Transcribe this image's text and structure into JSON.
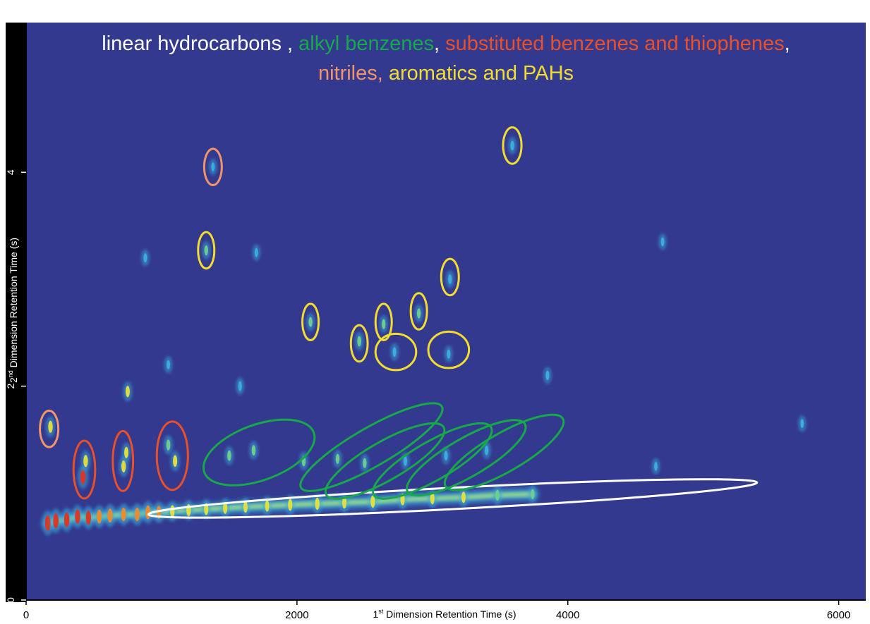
{
  "colors": {
    "background": "#33398f",
    "linear": "#ffffff",
    "alkyl": "#17a84a",
    "substituted": "#e8502a",
    "nitriles": "#f0956a",
    "aromatics": "#f2dc2f",
    "axis": "#000000"
  },
  "title": {
    "line1": [
      {
        "text": "linear hydrocarbons , ",
        "group": "linear"
      },
      {
        "text": "alkyl benzenes",
        "group": "alkyl"
      },
      {
        "text": ", ",
        "group": "linear"
      },
      {
        "text": "substituted benzenes and thiophenes",
        "group": "substituted"
      },
      {
        "text": ",",
        "group": "linear"
      }
    ],
    "line2": [
      {
        "text": "nitriles, ",
        "group": "nitriles"
      },
      {
        "text": "aromatics and PAHs",
        "group": "aromatics"
      }
    ]
  },
  "chart_data": {
    "type": "heatmap",
    "xlabel": "1st Dimension Retention Time (s)",
    "xlabel_parts": {
      "prefix": "1",
      "sup": "st",
      "rest": " Dimension Retention Time (s)"
    },
    "ylabel": "2nd Dimension Retention Time (s)",
    "ylabel_parts": {
      "prefix": "2",
      "sup": "nd",
      "rest": " Dimension Retention Time (s)"
    },
    "xlim": [
      0,
      6200
    ],
    "ylim": [
      0,
      5.4
    ],
    "xticks": [
      "0",
      "2000",
      "4000",
      "6000"
    ],
    "xtick_values": [
      0,
      2000,
      4000,
      6000
    ],
    "yticks": [
      "0",
      "2",
      "4"
    ],
    "ytick_values": [
      0,
      2,
      4
    ],
    "compound_groups": [
      {
        "group": "linear",
        "regions": [
          {
            "x": 3150,
            "y": 0.95,
            "rx": 2250,
            "ry": 0.1,
            "angle": -3
          }
        ]
      },
      {
        "group": "alkyl",
        "regions": [
          {
            "x": 1720,
            "y": 1.38,
            "rx": 430,
            "ry": 0.26,
            "angle": -20
          },
          {
            "x": 2550,
            "y": 1.43,
            "rx": 600,
            "ry": 0.18,
            "angle": -30
          },
          {
            "x": 2650,
            "y": 1.3,
            "rx": 500,
            "ry": 0.18,
            "angle": -30
          },
          {
            "x": 3000,
            "y": 1.3,
            "rx": 500,
            "ry": 0.18,
            "angle": -30
          },
          {
            "x": 3250,
            "y": 1.33,
            "rx": 500,
            "ry": 0.18,
            "angle": -30
          },
          {
            "x": 3530,
            "y": 1.38,
            "rx": 500,
            "ry": 0.18,
            "angle": -30
          }
        ]
      },
      {
        "group": "substituted",
        "regions": [
          {
            "x": 430,
            "y": 1.22,
            "rx": 80,
            "ry": 0.27,
            "angle": 0
          },
          {
            "x": 715,
            "y": 1.3,
            "rx": 75,
            "ry": 0.28,
            "angle": 0
          },
          {
            "x": 1080,
            "y": 1.35,
            "rx": 115,
            "ry": 0.32,
            "angle": 0
          }
        ]
      },
      {
        "group": "nitriles",
        "regions": [
          {
            "x": 170,
            "y": 1.6,
            "rx": 68,
            "ry": 0.17,
            "angle": 0
          },
          {
            "x": 1380,
            "y": 4.05,
            "rx": 65,
            "ry": 0.17,
            "angle": 0
          }
        ]
      },
      {
        "group": "aromatics",
        "regions": [
          {
            "x": 1330,
            "y": 3.27,
            "rx": 60,
            "ry": 0.17,
            "angle": 0
          },
          {
            "x": 2100,
            "y": 2.6,
            "rx": 60,
            "ry": 0.17,
            "angle": 0
          },
          {
            "x": 2460,
            "y": 2.4,
            "rx": 62,
            "ry": 0.17,
            "angle": 0
          },
          {
            "x": 2640,
            "y": 2.6,
            "rx": 60,
            "ry": 0.17,
            "angle": 0
          },
          {
            "x": 2730,
            "y": 2.32,
            "rx": 150,
            "ry": 0.17,
            "angle": 0
          },
          {
            "x": 2900,
            "y": 2.7,
            "rx": 60,
            "ry": 0.17,
            "angle": 0
          },
          {
            "x": 3120,
            "y": 2.34,
            "rx": 150,
            "ry": 0.17,
            "angle": 0
          },
          {
            "x": 3130,
            "y": 3.02,
            "rx": 65,
            "ry": 0.17,
            "angle": 0
          },
          {
            "x": 3590,
            "y": 4.25,
            "rx": 68,
            "ry": 0.17,
            "angle": 0
          }
        ]
      }
    ],
    "peaks": [
      {
        "x": 160,
        "y": 0.72,
        "i": 1.0
      },
      {
        "x": 220,
        "y": 0.74,
        "i": 0.95
      },
      {
        "x": 300,
        "y": 0.75,
        "i": 0.9
      },
      {
        "x": 380,
        "y": 0.78,
        "i": 0.85
      },
      {
        "x": 460,
        "y": 0.77,
        "i": 0.85
      },
      {
        "x": 540,
        "y": 0.78,
        "i": 0.8
      },
      {
        "x": 620,
        "y": 0.79,
        "i": 0.8
      },
      {
        "x": 720,
        "y": 0.8,
        "i": 0.75
      },
      {
        "x": 820,
        "y": 0.8,
        "i": 0.75
      },
      {
        "x": 900,
        "y": 0.82,
        "i": 0.8
      },
      {
        "x": 980,
        "y": 0.82,
        "i": 0.7
      },
      {
        "x": 1080,
        "y": 0.83,
        "i": 0.6
      },
      {
        "x": 1200,
        "y": 0.84,
        "i": 0.6
      },
      {
        "x": 1330,
        "y": 0.85,
        "i": 0.55
      },
      {
        "x": 1470,
        "y": 0.86,
        "i": 0.55
      },
      {
        "x": 1620,
        "y": 0.87,
        "i": 0.5
      },
      {
        "x": 1780,
        "y": 0.88,
        "i": 0.5
      },
      {
        "x": 1950,
        "y": 0.89,
        "i": 0.55
      },
      {
        "x": 2150,
        "y": 0.9,
        "i": 0.6
      },
      {
        "x": 2350,
        "y": 0.91,
        "i": 0.55
      },
      {
        "x": 2560,
        "y": 0.92,
        "i": 0.6
      },
      {
        "x": 2780,
        "y": 0.94,
        "i": 0.55
      },
      {
        "x": 3000,
        "y": 0.95,
        "i": 0.55
      },
      {
        "x": 3230,
        "y": 0.96,
        "i": 0.5
      },
      {
        "x": 3480,
        "y": 0.98,
        "i": 0.45
      },
      {
        "x": 3740,
        "y": 0.99,
        "i": 0.35
      },
      {
        "x": 420,
        "y": 1.15,
        "i": 0.85
      },
      {
        "x": 440,
        "y": 1.3,
        "i": 0.6
      },
      {
        "x": 720,
        "y": 1.25,
        "i": 0.6
      },
      {
        "x": 740,
        "y": 1.38,
        "i": 0.5
      },
      {
        "x": 1100,
        "y": 1.3,
        "i": 0.55
      },
      {
        "x": 1050,
        "y": 1.45,
        "i": 0.45
      },
      {
        "x": 180,
        "y": 1.62,
        "i": 0.6
      },
      {
        "x": 750,
        "y": 1.95,
        "i": 0.5
      },
      {
        "x": 1500,
        "y": 1.35,
        "i": 0.4
      },
      {
        "x": 1680,
        "y": 1.4,
        "i": 0.4
      },
      {
        "x": 2050,
        "y": 1.3,
        "i": 0.4
      },
      {
        "x": 2300,
        "y": 1.32,
        "i": 0.35
      },
      {
        "x": 2500,
        "y": 1.28,
        "i": 0.35
      },
      {
        "x": 2800,
        "y": 1.3,
        "i": 0.3
      },
      {
        "x": 3100,
        "y": 1.35,
        "i": 0.3
      },
      {
        "x": 3400,
        "y": 1.4,
        "i": 0.3
      },
      {
        "x": 1330,
        "y": 3.27,
        "i": 0.35
      },
      {
        "x": 2100,
        "y": 2.6,
        "i": 0.35
      },
      {
        "x": 2460,
        "y": 2.42,
        "i": 0.4
      },
      {
        "x": 2640,
        "y": 2.58,
        "i": 0.35
      },
      {
        "x": 2900,
        "y": 2.68,
        "i": 0.35
      },
      {
        "x": 3130,
        "y": 3.0,
        "i": 0.3
      },
      {
        "x": 3590,
        "y": 4.25,
        "i": 0.3
      },
      {
        "x": 1380,
        "y": 4.05,
        "i": 0.2
      },
      {
        "x": 2720,
        "y": 2.32,
        "i": 0.3
      },
      {
        "x": 3120,
        "y": 2.3,
        "i": 0.25
      },
      {
        "x": 880,
        "y": 3.2,
        "i": 0.25
      },
      {
        "x": 1700,
        "y": 3.25,
        "i": 0.2
      },
      {
        "x": 4700,
        "y": 3.35,
        "i": 0.2
      },
      {
        "x": 3850,
        "y": 2.1,
        "i": 0.25
      },
      {
        "x": 1580,
        "y": 2.0,
        "i": 0.3
      },
      {
        "x": 1050,
        "y": 2.2,
        "i": 0.25
      },
      {
        "x": 5730,
        "y": 1.65,
        "i": 0.2
      },
      {
        "x": 4650,
        "y": 1.25,
        "i": 0.2
      }
    ]
  }
}
